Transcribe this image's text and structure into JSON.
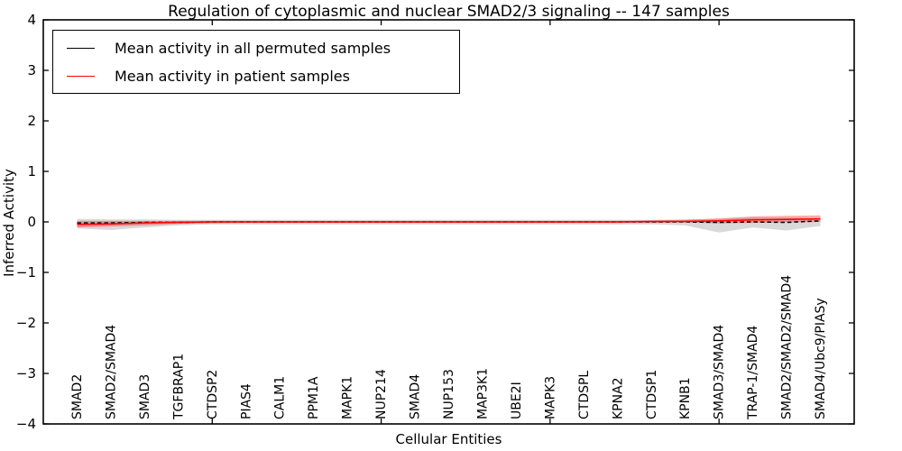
{
  "chart_data": {
    "type": "line",
    "title": "Regulation of cytoplasmic and nuclear SMAD2/3 signaling -- 147 samples",
    "xlabel": "Cellular Entities",
    "ylabel": "Inferred Activity",
    "ylim": [
      -4,
      4
    ],
    "xlim": [
      0,
      24
    ],
    "yticks": [
      -4,
      -3,
      -2,
      -1,
      0,
      1,
      2,
      3,
      4
    ],
    "xticks": [
      5,
      10,
      15,
      20
    ],
    "grid": false,
    "legend_position": "upper left",
    "categories": [
      "SMAD2",
      "SMAD2/SMAD4",
      "SMAD3",
      "TGFBRAP1",
      "CTDSP2",
      "PIAS4",
      "CALM1",
      "PPM1A",
      "MAPK1",
      "NUP214",
      "SMAD4",
      "NUP153",
      "MAP3K1",
      "UBE2I",
      "MAPK3",
      "CTDSPL",
      "KPNA2",
      "CTDSP1",
      "KPNB1",
      "SMAD3/SMAD4",
      "TRAP-1/SMAD4",
      "SMAD2/SMAD2/SMAD4",
      "SMAD4/Ubc9/PIASy"
    ],
    "series": [
      {
        "id": "permuted",
        "name": "Mean activity in all permuted samples",
        "color": "#000000",
        "style": "dashed",
        "band_color": "#808080",
        "band_opacity": 0.3,
        "values": [
          -0.02,
          -0.02,
          -0.01,
          -0.01,
          0,
          0,
          0,
          0,
          0,
          0,
          0,
          0,
          0,
          0,
          0,
          0,
          0,
          0,
          0,
          -0.01,
          0,
          -0.01,
          0.02
        ],
        "band_upper": [
          0.06,
          0.05,
          0.05,
          0.04,
          0.04,
          0.04,
          0.04,
          0.04,
          0.04,
          0.04,
          0.04,
          0.04,
          0.04,
          0.04,
          0.04,
          0.04,
          0.04,
          0.04,
          0.05,
          0.06,
          0.09,
          0.08,
          0.07
        ],
        "band_lower": [
          -0.13,
          -0.16,
          -0.11,
          -0.07,
          -0.05,
          -0.05,
          -0.05,
          -0.05,
          -0.05,
          -0.05,
          -0.05,
          -0.05,
          -0.05,
          -0.05,
          -0.05,
          -0.05,
          -0.05,
          -0.05,
          -0.07,
          -0.21,
          -0.11,
          -0.17,
          -0.08
        ]
      },
      {
        "id": "patient",
        "name": "Mean activity in patient samples",
        "color": "#ff0000",
        "style": "solid",
        "band_color": "#ff0000",
        "band_opacity": 0.32,
        "values": [
          -0.05,
          -0.04,
          -0.02,
          -0.01,
          0,
          0,
          0,
          0,
          0,
          0,
          0,
          0,
          0,
          0,
          0,
          0,
          0,
          0.01,
          0.01,
          0.02,
          0.04,
          0.05,
          0.06
        ],
        "band_upper": [
          0.02,
          0.02,
          0.02,
          0.02,
          0.02,
          0.02,
          0.02,
          0.02,
          0.02,
          0.02,
          0.02,
          0.02,
          0.02,
          0.02,
          0.02,
          0.02,
          0.02,
          0.03,
          0.04,
          0.07,
          0.11,
          0.12,
          0.13
        ],
        "band_lower": [
          -0.11,
          -0.09,
          -0.07,
          -0.04,
          -0.03,
          -0.02,
          -0.02,
          -0.02,
          -0.02,
          -0.02,
          -0.02,
          -0.02,
          -0.02,
          -0.02,
          -0.02,
          -0.02,
          -0.02,
          -0.02,
          -0.01,
          -0.03,
          -0.02,
          -0.01,
          0.0
        ]
      }
    ]
  }
}
